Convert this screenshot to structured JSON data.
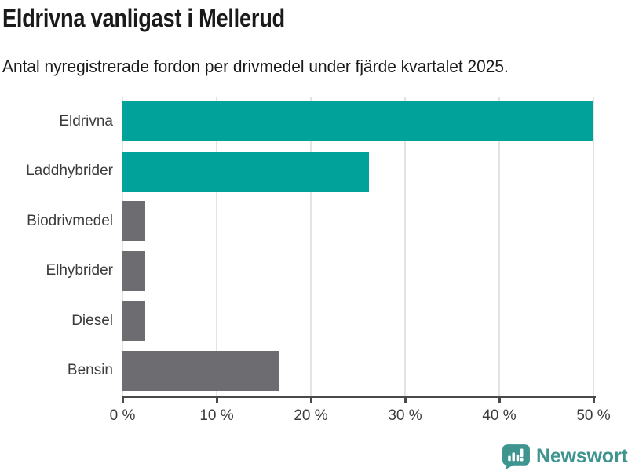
{
  "header": {
    "title": "Eldrivna vanligast i Mellerud",
    "subtitle": "Antal nyregistrerade fordon per drivmedel under fjärde kvartalet 2025."
  },
  "chart_data": {
    "type": "bar",
    "orientation": "horizontal",
    "title": "Eldrivna vanligast i Mellerud",
    "subtitle": "Antal nyregistrerade fordon per drivmedel under fjärde kvartalet 2025.",
    "categories": [
      "Eldrivna",
      "Laddhybrider",
      "Biodrivmedel",
      "Elhybrider",
      "Diesel",
      "Bensin"
    ],
    "values": [
      50.0,
      26.2,
      2.4,
      2.4,
      2.4,
      16.7
    ],
    "unit": "%",
    "xlabel": "",
    "ylabel": "",
    "xlim": [
      0,
      50
    ],
    "x_tick_values": [
      0,
      10,
      20,
      30,
      40,
      50
    ],
    "x_tick_labels": [
      "0 %",
      "10 %",
      "20 %",
      "30 %",
      "40 %",
      "50 %"
    ],
    "grid": true,
    "legend": false,
    "bar_colors": [
      "#00A29A",
      "#00A29A",
      "#6C6C71",
      "#6C6C71",
      "#6C6C71",
      "#6C6C71"
    ],
    "colors": {
      "highlight": "#00A29A",
      "muted": "#6C6C71",
      "gridline": "#E3E3E3",
      "axis": "#4A4A4A",
      "tick_label": "#3B3B3B"
    }
  },
  "footer": {
    "brand": "Newsworthy",
    "brand_color": "#3E948E",
    "logo_color": "#3E948E"
  }
}
